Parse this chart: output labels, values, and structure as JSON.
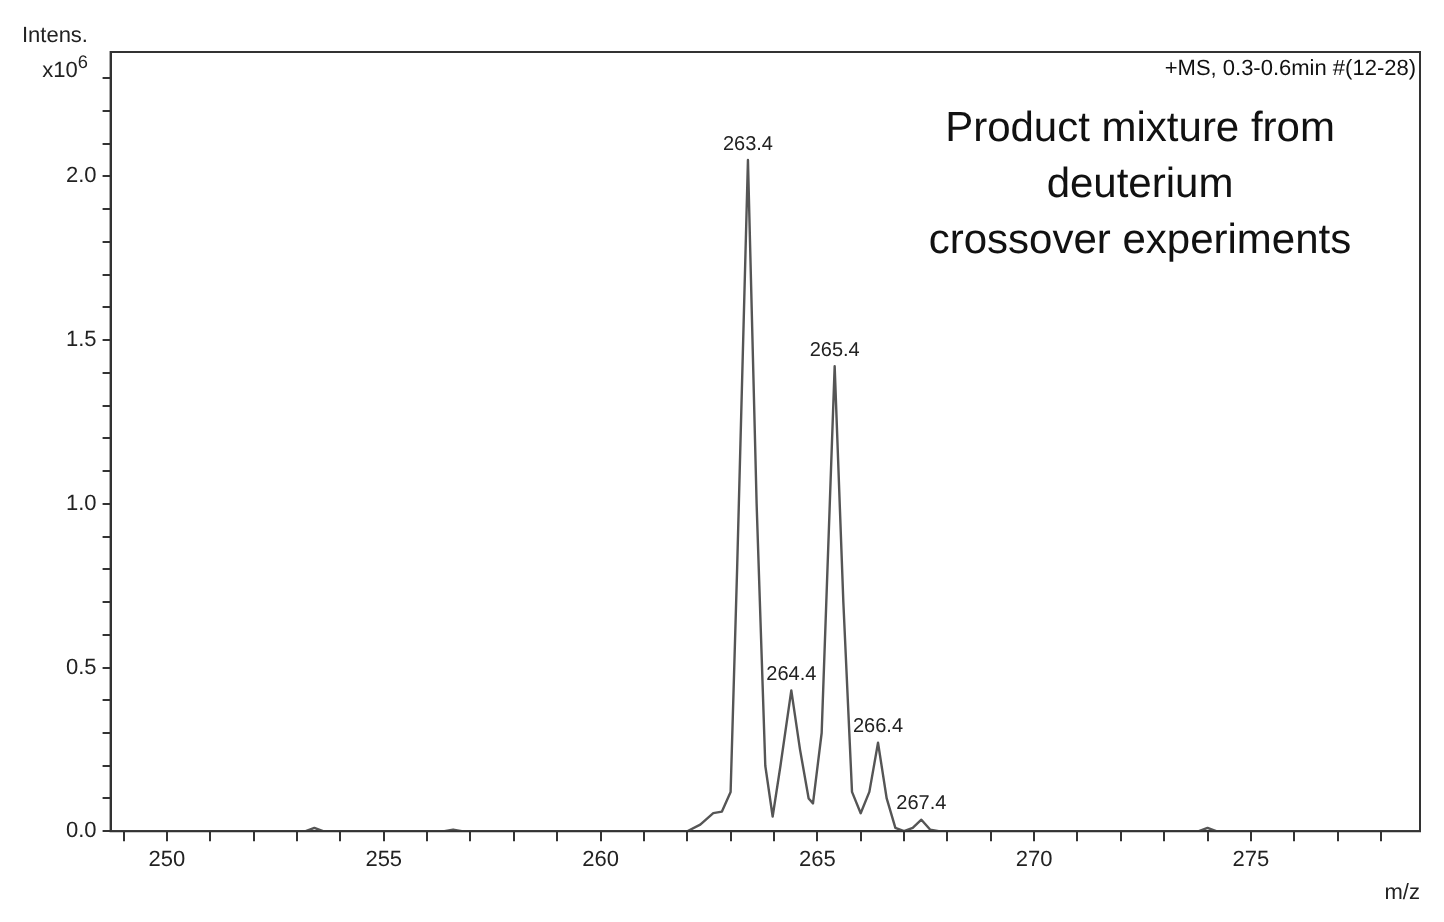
{
  "chart_data": {
    "type": "line",
    "xlabel": "m/z",
    "ylabel": "Intens. x10$^{6}$",
    "annotations": [
      "+MS, 0.3-0.6min #(12-28)",
      "Product mixture from\ndeuterium\ncrossover experiments",
      {
        "text": "263.4",
        "x": 263.4,
        "y": 2.05
      },
      {
        "text": "264.4",
        "x": 264.4,
        "y": 0.43
      },
      {
        "text": "265.4",
        "x": 265.4,
        "y": 1.42
      },
      {
        "text": "266.4",
        "x": 266.4,
        "y": 0.27
      },
      {
        "text": "267.4",
        "x": 267.4,
        "y": 0.035
      }
    ],
    "x": [
      248.7,
      253.2,
      253.4,
      253.6,
      256.4,
      256.6,
      256.8,
      262.0,
      262.3,
      262.6,
      262.8,
      263.0,
      263.15,
      263.4,
      263.6,
      263.8,
      263.97,
      264.15,
      264.4,
      264.6,
      264.8,
      264.9,
      265.1,
      265.4,
      265.6,
      265.8,
      266.0,
      266.2,
      266.4,
      266.6,
      266.8,
      267.0,
      267.2,
      267.4,
      267.6,
      267.8,
      273.8,
      274.0,
      274.2,
      278.9
    ],
    "series": [
      {
        "color": "#555555",
        "values": [
          0,
          0,
          0.01,
          0,
          0,
          0.005,
          0,
          0,
          0.02,
          0.055,
          0.06,
          0.12,
          0.8,
          2.05,
          1.0,
          0.2,
          0.045,
          0.2,
          0.43,
          0.25,
          0.1,
          0.085,
          0.3,
          1.42,
          0.7,
          0.12,
          0.055,
          0.12,
          0.27,
          0.1,
          0.01,
          0,
          0.01,
          0.035,
          0.005,
          0,
          0,
          0.01,
          0,
          0
        ]
      }
    ],
    "xlim": [
      248.7,
      278.9
    ],
    "xticks": [
      {
        "value": 249,
        "label": null
      },
      250,
      {
        "value": 251,
        "label": null
      },
      {
        "value": 252,
        "label": null
      },
      {
        "value": 253,
        "label": null
      },
      {
        "value": 254,
        "label": null
      },
      255,
      {
        "value": 256,
        "label": null
      },
      {
        "value": 257,
        "label": null
      },
      {
        "value": 258,
        "label": null
      },
      {
        "value": 259,
        "label": null
      },
      260,
      {
        "value": 261,
        "label": null
      },
      {
        "value": 262,
        "label": null
      },
      {
        "value": 263,
        "label": null
      },
      {
        "value": 264,
        "label": null
      },
      265,
      {
        "value": 266,
        "label": null
      },
      {
        "value": 267,
        "label": null
      },
      {
        "value": 268,
        "label": null
      },
      {
        "value": 269,
        "label": null
      },
      270,
      {
        "value": 271,
        "label": null
      },
      {
        "value": 272,
        "label": null
      },
      {
        "value": 273,
        "label": null
      },
      {
        "value": 274,
        "label": null
      },
      275,
      {
        "value": 276,
        "label": null
      },
      {
        "value": 277,
        "label": null
      },
      {
        "value": 278,
        "label": null
      }
    ],
    "ylim": [
      0,
      2.38
    ],
    "yticks": [
      {
        "value": 0,
        "label": "0.0"
      },
      {
        "value": 0.1,
        "label": null
      },
      {
        "value": 0.2,
        "label": null
      },
      {
        "value": 0.3,
        "label": null
      },
      {
        "value": 0.4,
        "label": null
      },
      0.5,
      {
        "value": 0.6,
        "label": null
      },
      {
        "value": 0.7,
        "label": null
      },
      {
        "value": 0.8,
        "label": null
      },
      {
        "value": 0.9,
        "label": null
      },
      {
        "value": 1,
        "label": "1.0"
      },
      {
        "value": 1.1,
        "label": null
      },
      {
        "value": 1.2,
        "label": null
      },
      {
        "value": 1.3,
        "label": null
      },
      {
        "value": 1.4,
        "label": null
      },
      1.5,
      {
        "value": 1.6,
        "label": null
      },
      {
        "value": 1.7,
        "label": null
      },
      {
        "value": 1.8,
        "label": null
      },
      {
        "value": 1.9,
        "label": null
      },
      {
        "value": 2,
        "label": "2.0"
      },
      {
        "value": 2.1,
        "label": null
      },
      {
        "value": 2.2,
        "label": null
      },
      {
        "value": 2.3,
        "label": null
      }
    ],
    "grid": false,
    "legend": false,
    "marker": "none",
    "line_style": "solid"
  }
}
